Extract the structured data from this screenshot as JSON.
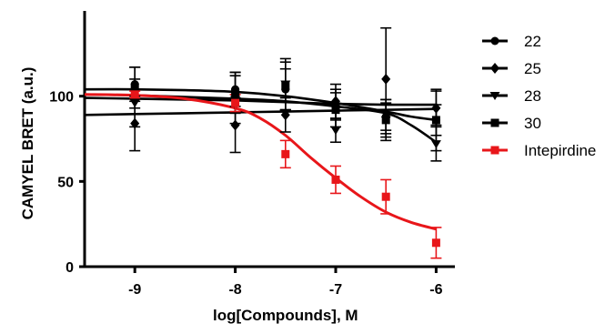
{
  "chart_data": {
    "type": "scatter",
    "xlabel": "log[Compounds], M",
    "ylabel": "CAMYEL BRET (a.u.)",
    "xlim": [
      -9.5,
      -5.75
    ],
    "ylim": [
      0,
      150
    ],
    "x_ticks": [
      -9,
      -8,
      -7,
      -6
    ],
    "x_tick_labels": [
      "-9",
      "-8",
      "-7",
      "-6"
    ],
    "y_ticks": [
      0,
      50,
      100
    ],
    "y_tick_labels": [
      "0",
      "50",
      "100"
    ],
    "grid": false,
    "legend_position": "right",
    "x": [
      -9,
      -8,
      -7.5,
      -7,
      -6.5,
      -6
    ],
    "series": [
      {
        "name": "22",
        "color": "#000000",
        "marker": "circle",
        "values": [
          107,
          104,
          104,
          95,
          88,
          86
        ],
        "error": [
          10,
          10,
          12,
          9,
          10,
          9
        ],
        "fit": [
          [
            -9.5,
            104
          ],
          [
            -9,
            104
          ],
          [
            -8.5,
            103.5
          ],
          [
            -8,
            102.5
          ],
          [
            -7.5,
            100
          ],
          [
            -7,
            96
          ],
          [
            -6.5,
            91
          ],
          [
            -6.25,
            88
          ],
          [
            -6,
            86
          ]
        ]
      },
      {
        "name": "25",
        "color": "#000000",
        "marker": "diamond",
        "values": [
          84,
          83,
          89,
          97,
          110,
          93
        ],
        "error": [
          16,
          16,
          10,
          10,
          30,
          10
        ],
        "fit": [
          [
            -9.5,
            89
          ],
          [
            -9,
            89.5
          ],
          [
            -8.5,
            90
          ],
          [
            -8,
            90.5
          ],
          [
            -7.5,
            91
          ],
          [
            -7,
            91.5
          ],
          [
            -6.5,
            92
          ],
          [
            -6,
            92.5
          ]
        ]
      },
      {
        "name": "28",
        "color": "#000000",
        "marker": "triangle-down",
        "values": [
          96,
          98,
          107,
          80,
          86,
          72
        ],
        "error": [
          14,
          14,
          15,
          7,
          10,
          10
        ],
        "fit": [
          [
            -9.5,
            101
          ],
          [
            -9,
            100.5
          ],
          [
            -8.5,
            99.5
          ],
          [
            -8,
            98.5
          ],
          [
            -7.5,
            97
          ],
          [
            -7,
            94
          ],
          [
            -6.5,
            90
          ],
          [
            -6.25,
            83
          ],
          [
            -6,
            73
          ]
        ]
      },
      {
        "name": "30",
        "color": "#000000",
        "marker": "square",
        "values": [
          105,
          102,
          106,
          92,
          86,
          86
        ],
        "error": [
          12,
          12,
          14,
          10,
          12,
          18
        ],
        "fit": [
          [
            -9.5,
            99
          ],
          [
            -9,
            98.5
          ],
          [
            -8.5,
            98
          ],
          [
            -8,
            97.5
          ],
          [
            -7.5,
            96.5
          ],
          [
            -7,
            95.5
          ],
          [
            -6.5,
            95
          ],
          [
            -6,
            95
          ]
        ]
      },
      {
        "name": "Intepirdine",
        "color": "#e8161a",
        "marker": "square",
        "values": [
          101,
          96,
          66,
          51,
          41,
          14
        ],
        "error": [
          2,
          5,
          8,
          8,
          10,
          9
        ],
        "fit": [
          [
            -9.5,
            101
          ],
          [
            -9,
            100.5
          ],
          [
            -8.5,
            98.5
          ],
          [
            -8,
            93
          ],
          [
            -7.75,
            87
          ],
          [
            -7.5,
            77
          ],
          [
            -7.25,
            64
          ],
          [
            -7,
            52
          ],
          [
            -6.75,
            41
          ],
          [
            -6.5,
            32
          ],
          [
            -6.25,
            26
          ],
          [
            -6,
            22
          ]
        ]
      }
    ]
  }
}
